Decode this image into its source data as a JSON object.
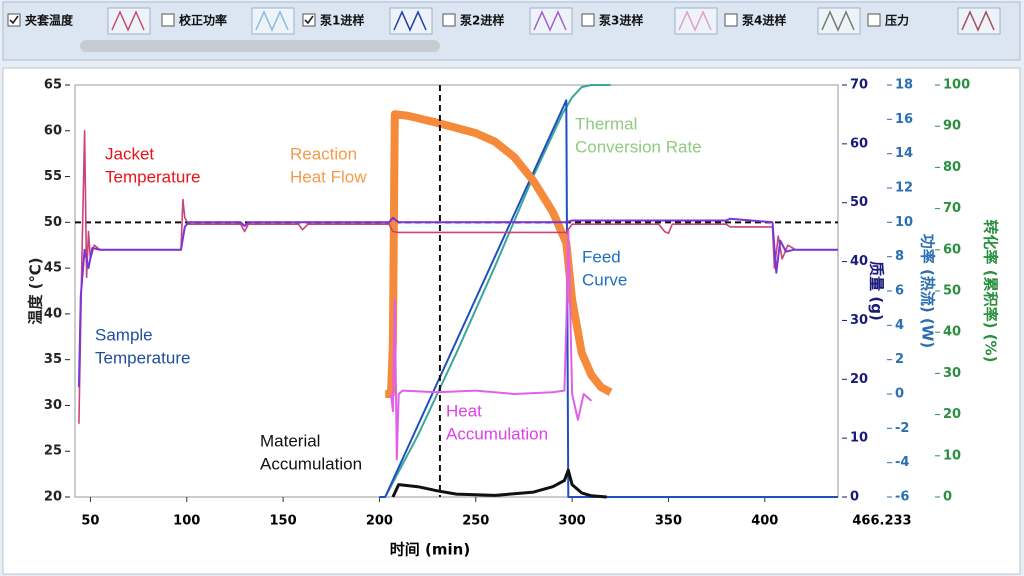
{
  "toolbar": {
    "items": [
      {
        "label": "夹套温度",
        "checked": true,
        "icon_color": "#c05078"
      },
      {
        "label": "校正功率",
        "checked": false,
        "icon_color": "#7fbfe0"
      },
      {
        "label": "泵1进样",
        "checked": true,
        "icon_color": "#1f3fa0"
      },
      {
        "label": "泵2进样",
        "checked": false,
        "icon_color": "#a060d0"
      },
      {
        "label": "泵3进样",
        "checked": false,
        "icon_color": "#e0a0d0"
      },
      {
        "label": "泵4进样",
        "checked": false,
        "icon_color": "#6f806a"
      },
      {
        "label": "压力",
        "checked": false,
        "icon_color": "#a05060"
      }
    ]
  },
  "chart_data": {
    "type": "line",
    "xlabel": "时间 (min)",
    "xlim": [
      42,
      438
    ],
    "xticks": [
      50,
      100,
      150,
      200,
      250,
      300,
      350,
      400
    ],
    "x_end_label": "466.233",
    "ylabel": "温度 (℃)",
    "ylim": [
      20,
      65
    ],
    "yticks": [
      20,
      25,
      30,
      35,
      40,
      45,
      50,
      55,
      60,
      65
    ],
    "ycolor": "#222222",
    "y2label": "质量 (g)",
    "y2lim": [
      0,
      70
    ],
    "y2ticks": [
      0,
      10,
      20,
      30,
      40,
      50,
      60,
      70
    ],
    "y2color": "#1a1a7a",
    "y3label": "功率 (热流) (W)",
    "y3lim": [
      -6,
      18
    ],
    "y3ticks": [
      -6,
      -4,
      -2,
      0,
      2,
      4,
      6,
      8,
      10,
      12,
      14,
      16,
      18
    ],
    "y3color": "#2a6fb0",
    "y4label": "转化率 (累积率) (%)",
    "y4lim": [
      0,
      100
    ],
    "y4ticks": [
      0,
      10,
      20,
      30,
      40,
      50,
      60,
      70,
      80,
      90,
      100
    ],
    "y4color": "#2a9040",
    "reference_lines": {
      "y": 50,
      "x": 231.4
    },
    "series": [
      {
        "name": [
          "Thermal",
          "Conversion Rate"
        ],
        "color": "#3aa89a",
        "label_color": "#8fca7f",
        "axis": "y4",
        "x": [
          203,
          220,
          240,
          260,
          280,
          295,
          300,
          305,
          310,
          320
        ],
        "values": [
          0,
          15,
          35,
          56,
          78,
          93,
          97,
          99.5,
          100,
          100
        ]
      },
      {
        "name": [
          "Feed",
          "Curve"
        ],
        "color": "#1f4fc0",
        "label_color": "#1f6fc0",
        "axis": "y2",
        "x": [
          200,
          203,
          297,
          298,
          438
        ],
        "values": [
          0,
          0,
          67.4,
          0,
          0
        ]
      },
      {
        "name": [
          "Reaction",
          "Heat Flow"
        ],
        "color": "#f58a3a",
        "label_color": "#f59a4a",
        "axis": "y3",
        "x": [
          203,
          206,
          207,
          208,
          215,
          230,
          250,
          260,
          270,
          280,
          290,
          297,
          300,
          305,
          310,
          315,
          320
        ],
        "values": [
          0,
          0,
          3,
          16.3,
          16.2,
          15.8,
          15.2,
          14.7,
          13.8,
          12.4,
          10.6,
          8.8,
          5.5,
          2.4,
          1.1,
          0.4,
          0.1
        ]
      },
      {
        "name": [
          "Heat",
          "Accumulation"
        ],
        "color": "#e060e8",
        "label_color": "#e040e8",
        "axis": "y3",
        "x": [
          206,
          207,
          208,
          209,
          210,
          212,
          230,
          250,
          270,
          290,
          296,
          297,
          298,
          299,
          300,
          303,
          306,
          310
        ],
        "values": [
          0,
          -1,
          5.5,
          -3.8,
          0,
          0.2,
          0.1,
          0.2,
          0,
          0.1,
          0.2,
          4,
          9.5,
          5,
          0,
          -1.5,
          0,
          -0.4
        ]
      },
      {
        "name": [
          "Material",
          "Accumulation"
        ],
        "color": "#111111",
        "label_color": "#111111",
        "axis": "y4",
        "x": [
          207,
          210,
          220,
          230,
          240,
          260,
          280,
          290,
          296,
          298,
          300,
          305,
          310,
          318
        ],
        "values": [
          0,
          3,
          2.5,
          1.5,
          0.7,
          0.4,
          1.2,
          2.5,
          4,
          6.5,
          3,
          1,
          0.3,
          0
        ]
      },
      {
        "name": [
          "Jacket",
          "Temperature"
        ],
        "color": "#c8447a",
        "label_color": "#e8141c",
        "axis": "y",
        "x": [
          44,
          45.5,
          47,
          48,
          49,
          50,
          52,
          55,
          97,
          98,
          99,
          101,
          110,
          128,
          130,
          132,
          158,
          160,
          163,
          205,
          207,
          210,
          297,
          300,
          305,
          345,
          348,
          350,
          352,
          380,
          382,
          404,
          405,
          407,
          409,
          412,
          416,
          438
        ],
        "values": [
          28,
          45,
          60,
          44,
          49,
          46,
          47.5,
          47,
          47,
          52.5,
          50.5,
          49.8,
          49.8,
          49.8,
          49,
          49.8,
          49.8,
          49.2,
          49.8,
          49.8,
          49,
          48.9,
          48.9,
          49.8,
          49.8,
          49.8,
          49,
          48.8,
          49.8,
          49.8,
          49.5,
          49.5,
          45,
          48.5,
          46,
          47.5,
          47,
          47
        ]
      },
      {
        "name": [
          "Sample",
          "Temperature"
        ],
        "color": "#7b35d6",
        "label_color": "#1f4f9f",
        "axis": "y",
        "x": [
          44,
          45,
          47,
          49,
          51,
          55,
          97,
          99,
          101,
          128,
          130,
          132,
          205,
          207,
          210,
          297,
          300,
          380,
          382,
          404,
          406,
          408,
          411,
          415,
          438
        ],
        "values": [
          32,
          42,
          47,
          45,
          47.2,
          47,
          47,
          49.5,
          50,
          50,
          49.6,
          50,
          50,
          50.5,
          50,
          50,
          50.2,
          50.2,
          50.4,
          50,
          44.5,
          48,
          46.8,
          47,
          47
        ]
      }
    ]
  }
}
